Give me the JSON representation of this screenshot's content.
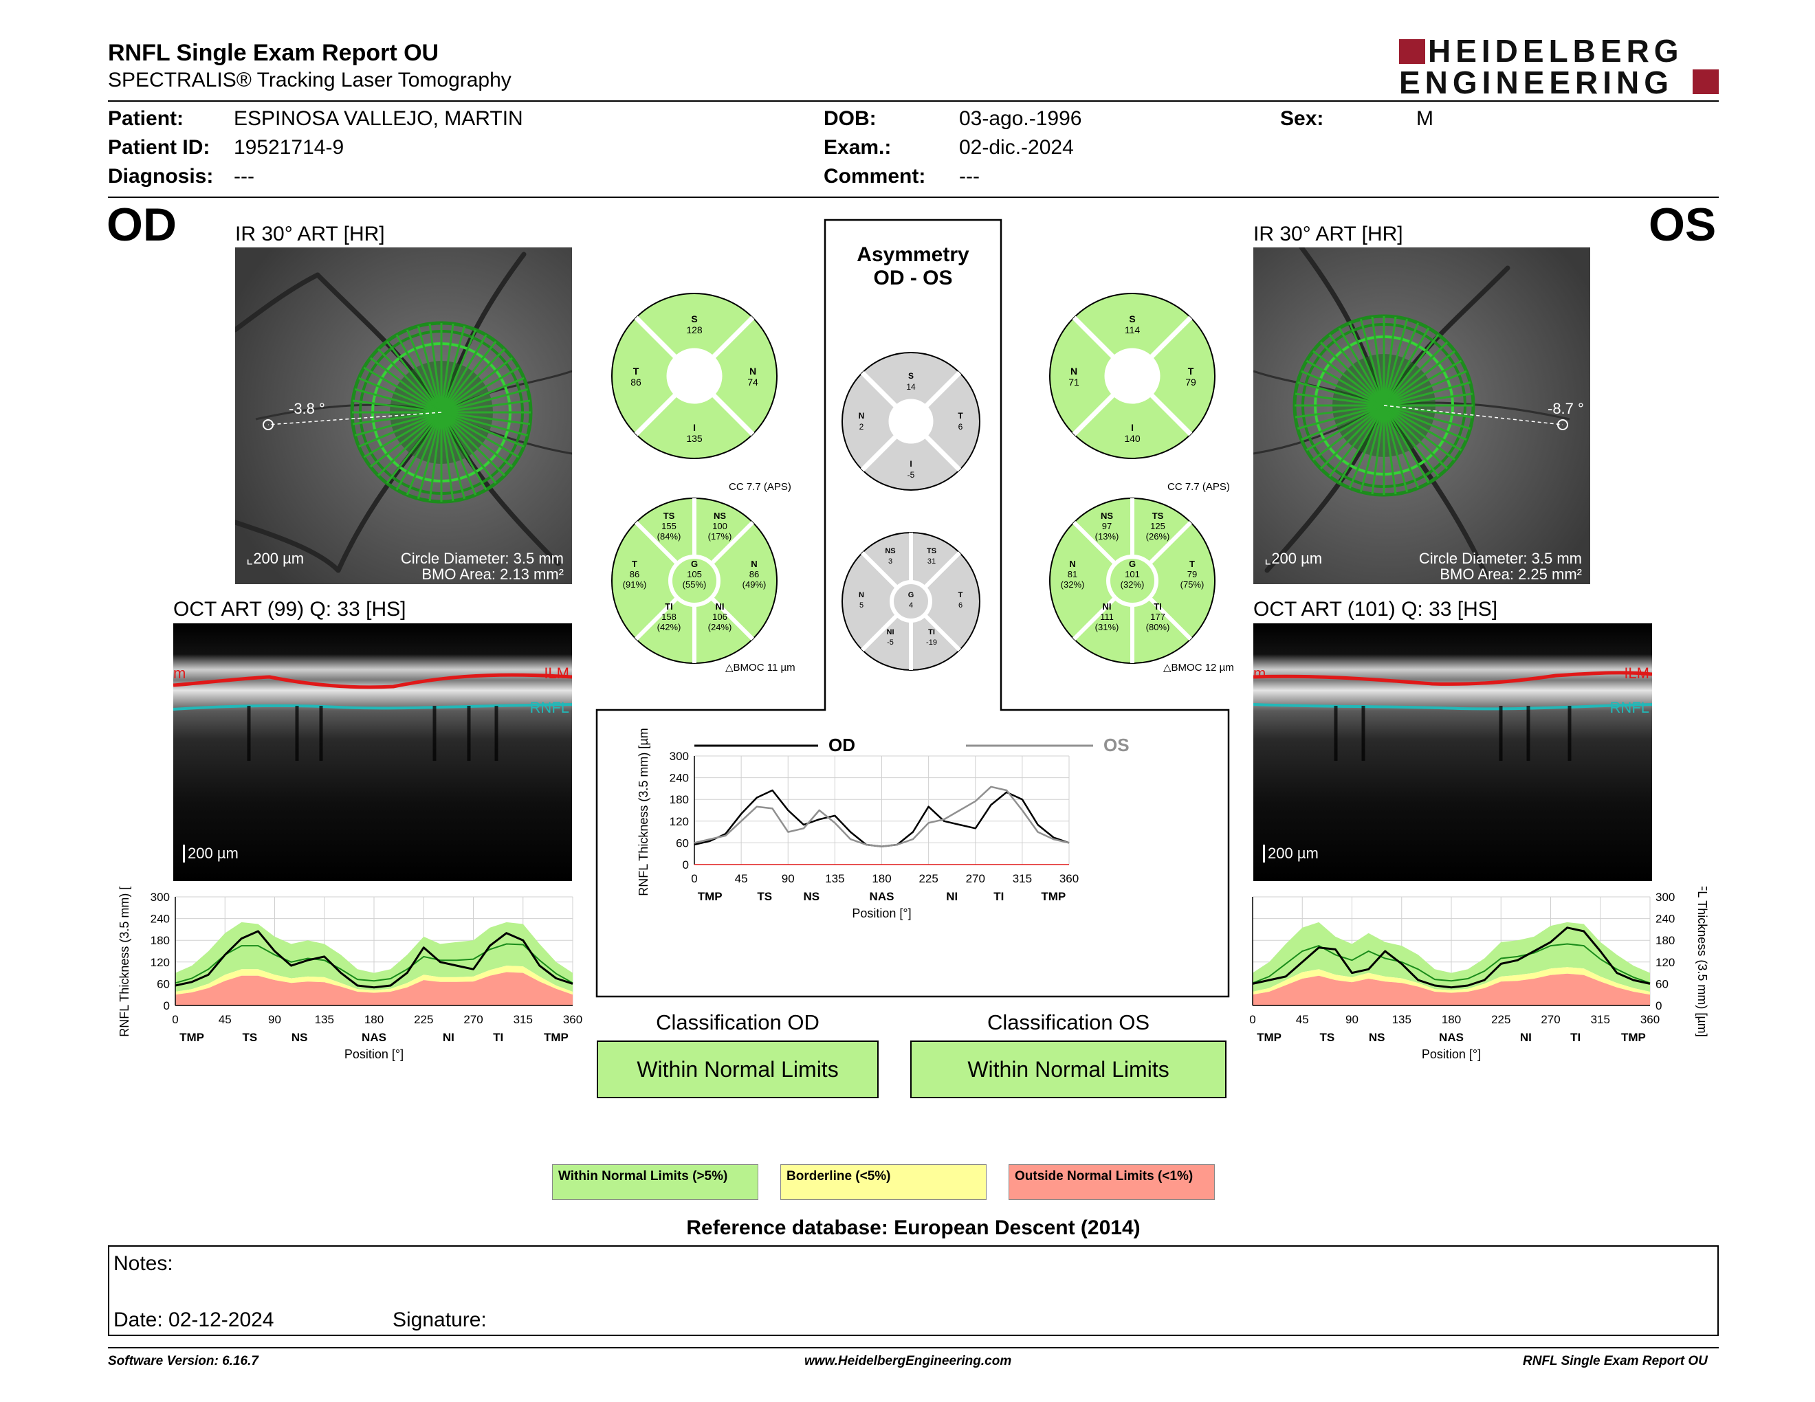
{
  "header": {
    "title": "RNFL Single Exam Report OU",
    "subtitle": "SPECTRALIS® Tracking Laser Tomography",
    "logo_line1": "HEIDELBERG",
    "logo_line2": "ENGINEERING"
  },
  "patient": {
    "patient_label": "Patient:",
    "patient_value": "ESPINOSA VALLEJO, MARTIN",
    "id_label": "Patient ID:",
    "id_value": "19521714-9",
    "diagnosis_label": "Diagnosis:",
    "diagnosis_value": "---",
    "dob_label": "DOB:",
    "dob_value": "03-ago.-1996",
    "exam_label": "Exam.:",
    "exam_value": "02-dic.-2024",
    "comment_label": "Comment:",
    "comment_value": "---",
    "sex_label": "Sex:",
    "sex_value": "M"
  },
  "od": {
    "eye": "OD",
    "ir_title": "IR 30° ART [HR]",
    "angle": "-3.8 °",
    "scale": "200 µm",
    "circle_diameter": "Circle Diameter: 3.5 mm",
    "bmo_area": "BMO Area: 2.13 mm²",
    "oct_title": "OCT ART (99) Q: 33 [HS]",
    "oct_scale": "200 µm",
    "ilm": "ILM",
    "ilm_left": "m",
    "rnfl": "RNFL",
    "sectors4": {
      "S": "128",
      "T": "86",
      "N": "74",
      "I": "135"
    },
    "cc": "CC 7.7 (APS)",
    "bmoc": "BMOC 11 µm",
    "sectors6": {
      "TS": "155",
      "TS_p": "(84%)",
      "NS": "100",
      "NS_p": "(17%)",
      "T": "86",
      "T_p": "(91%)",
      "G": "105",
      "G_p": "(55%)",
      "N": "86",
      "N_p": "(49%)",
      "TI": "158",
      "TI_p": "(42%)",
      "NI": "106",
      "NI_p": "(24%)"
    },
    "classification_title": "Classification OD",
    "classification": "Within Normal Limits"
  },
  "os": {
    "eye": "OS",
    "ir_title": "IR 30° ART [HR]",
    "angle": "-8.7 °",
    "scale": "200 µm",
    "circle_diameter": "Circle Diameter: 3.5 mm",
    "bmo_area": "BMO Area: 2.25 mm²",
    "oct_title": "OCT ART (101) Q: 33 [HS]",
    "oct_scale": "200 µm",
    "ilm": "ILM",
    "ilm_left": "m",
    "rnfl": "RNFL",
    "sectors4": {
      "S": "114",
      "N": "71",
      "T": "79",
      "I": "140"
    },
    "cc": "CC 7.7 (APS)",
    "bmoc": "BMOC 12 µm",
    "sectors6": {
      "NS": "97",
      "NS_p": "(13%)",
      "TS": "125",
      "TS_p": "(26%)",
      "N": "81",
      "N_p": "(32%)",
      "G": "101",
      "G_p": "(32%)",
      "T": "79",
      "T_p": "(75%)",
      "NI": "111",
      "NI_p": "(31%)",
      "TI": "177",
      "TI_p": "(80%)"
    },
    "classification_title": "Classification OS",
    "classification": "Within Normal Limits"
  },
  "asymmetry": {
    "title1": "Asymmetry",
    "title2": "OD - OS",
    "sectors4": {
      "S": "14",
      "N": "2",
      "T": "6",
      "I": "-5"
    },
    "sectors6": {
      "NS": "3",
      "TS": "31",
      "N": "5",
      "G": "4",
      "T": "6",
      "NI": "-5",
      "TI": "-19"
    }
  },
  "legend": {
    "normal": "Within Normal Limits (>5%)",
    "borderline": "Borderline (<5%)",
    "outside": "Outside Normal Limits (<1%)",
    "reference": "Reference database: European Descent (2014)",
    "normal_color": "#b8f28e",
    "borderline_color": "#ffff99",
    "outside_color": "#ff9a8c"
  },
  "notes": {
    "notes_label": "Notes:",
    "date_label": "Date: 02-12-2024",
    "signature_label": "Signature:"
  },
  "footer": {
    "software": "Software Version: 6.16.7",
    "url": "www.HeidelbergEngineering.com",
    "report": "RNFL Single Exam Report OU"
  },
  "chart_data": [
    {
      "type": "line",
      "id": "od-thickness",
      "ylabel": "RNFL Thickness (3.5 mm) [µm]",
      "xlabel": "Position [°]",
      "ylim": [
        0,
        300
      ],
      "xlim": [
        0,
        360
      ],
      "xticks": [
        "0",
        "45",
        "90",
        "135",
        "180",
        "225",
        "270",
        "315",
        "360"
      ],
      "yticks": [
        "0",
        "60",
        "120",
        "180",
        "240",
        "300"
      ],
      "sector_labels": [
        "TMP",
        "TS",
        "NS",
        "NAS",
        "NI",
        "TI",
        "TMP"
      ],
      "x": [
        0,
        15,
        30,
        45,
        60,
        75,
        90,
        105,
        120,
        135,
        150,
        165,
        180,
        195,
        210,
        225,
        240,
        255,
        270,
        285,
        300,
        315,
        330,
        345,
        360
      ],
      "series": [
        {
          "name": "OD",
          "values": [
            55,
            65,
            85,
            140,
            185,
            205,
            150,
            110,
            125,
            135,
            90,
            55,
            50,
            55,
            90,
            160,
            120,
            110,
            100,
            165,
            200,
            180,
            110,
            75,
            60
          ]
        }
      ],
      "normal_band": {
        "upper": [
          90,
          110,
          150,
          200,
          230,
          225,
          190,
          170,
          180,
          170,
          140,
          100,
          90,
          100,
          140,
          190,
          170,
          175,
          180,
          215,
          230,
          225,
          170,
          120,
          90
        ],
        "median": [
          62,
          75,
          100,
          140,
          165,
          165,
          140,
          120,
          130,
          125,
          100,
          72,
          68,
          74,
          100,
          135,
          125,
          125,
          128,
          155,
          170,
          168,
          125,
          88,
          62
        ],
        "borderline": [
          38,
          45,
          60,
          85,
          100,
          100,
          85,
          75,
          80,
          78,
          62,
          45,
          42,
          46,
          62,
          85,
          78,
          78,
          80,
          98,
          110,
          108,
          80,
          55,
          38
        ],
        "outside": [
          30,
          36,
          48,
          68,
          82,
          82,
          70,
          62,
          66,
          64,
          52,
          38,
          35,
          38,
          50,
          70,
          65,
          65,
          66,
          82,
          92,
          90,
          66,
          46,
          30
        ]
      }
    },
    {
      "type": "line",
      "id": "os-thickness",
      "ylabel": "RNFL Thickness (3.5 mm) [µm]",
      "xlabel": "Position [°]",
      "ylim": [
        0,
        300
      ],
      "xlim": [
        0,
        360
      ],
      "xticks": [
        "0",
        "45",
        "90",
        "135",
        "180",
        "225",
        "270",
        "315",
        "360"
      ],
      "yticks": [
        "0",
        "60",
        "120",
        "180",
        "240",
        "300"
      ],
      "sector_labels": [
        "TMP",
        "TS",
        "NS",
        "NAS",
        "NI",
        "TI",
        "TMP"
      ],
      "x": [
        0,
        15,
        30,
        45,
        60,
        75,
        90,
        105,
        120,
        135,
        150,
        165,
        180,
        195,
        210,
        225,
        240,
        255,
        270,
        285,
        300,
        315,
        330,
        345,
        360
      ],
      "series": [
        {
          "name": "OS",
          "values": [
            60,
            70,
            80,
            120,
            160,
            155,
            90,
            100,
            150,
            115,
            70,
            55,
            50,
            55,
            70,
            115,
            125,
            150,
            175,
            215,
            205,
            150,
            90,
            70,
            60
          ]
        }
      ],
      "normal_band": {
        "upper": [
          90,
          120,
          170,
          215,
          230,
          190,
          170,
          200,
          175,
          165,
          140,
          100,
          90,
          100,
          130,
          175,
          180,
          190,
          220,
          230,
          225,
          175,
          140,
          110,
          90
        ],
        "median": [
          62,
          80,
          115,
          150,
          165,
          140,
          125,
          150,
          130,
          120,
          100,
          72,
          68,
          74,
          95,
          130,
          135,
          145,
          165,
          170,
          165,
          128,
          100,
          78,
          62
        ],
        "borderline": [
          38,
          48,
          70,
          92,
          100,
          85,
          78,
          90,
          80,
          75,
          62,
          45,
          42,
          46,
          60,
          80,
          84,
          90,
          102,
          106,
          102,
          80,
          62,
          48,
          38
        ],
        "outside": [
          30,
          38,
          56,
          74,
          82,
          70,
          64,
          74,
          66,
          62,
          52,
          38,
          35,
          38,
          48,
          66,
          68,
          74,
          84,
          88,
          84,
          66,
          50,
          38,
          30
        ]
      }
    },
    {
      "type": "line",
      "id": "asymmetry",
      "ylabel": "RNFL Thickness (3.5 mm) [µm]",
      "xlabel": "Position [°]",
      "ylim": [
        0,
        300
      ],
      "xlim": [
        0,
        360
      ],
      "xticks": [
        "0",
        "45",
        "90",
        "135",
        "180",
        "225",
        "270",
        "315",
        "360"
      ],
      "yticks": [
        "0",
        "60",
        "120",
        "180",
        "240",
        "300"
      ],
      "sector_labels": [
        "TMP",
        "TS",
        "NS",
        "NAS",
        "NI",
        "TI",
        "TMP"
      ],
      "x": [
        0,
        15,
        30,
        45,
        60,
        75,
        90,
        105,
        120,
        135,
        150,
        165,
        180,
        195,
        210,
        225,
        240,
        255,
        270,
        285,
        300,
        315,
        330,
        345,
        360
      ],
      "series": [
        {
          "name": "OD",
          "color": "#000000",
          "values": [
            55,
            65,
            85,
            140,
            185,
            205,
            150,
            110,
            125,
            135,
            90,
            55,
            50,
            55,
            90,
            160,
            120,
            110,
            100,
            165,
            200,
            180,
            110,
            75,
            60
          ]
        },
        {
          "name": "OS",
          "color": "#909090",
          "values": [
            60,
            70,
            80,
            120,
            160,
            155,
            90,
            100,
            150,
            115,
            70,
            55,
            50,
            55,
            70,
            115,
            125,
            150,
            175,
            215,
            205,
            150,
            90,
            70,
            60
          ]
        }
      ]
    }
  ]
}
